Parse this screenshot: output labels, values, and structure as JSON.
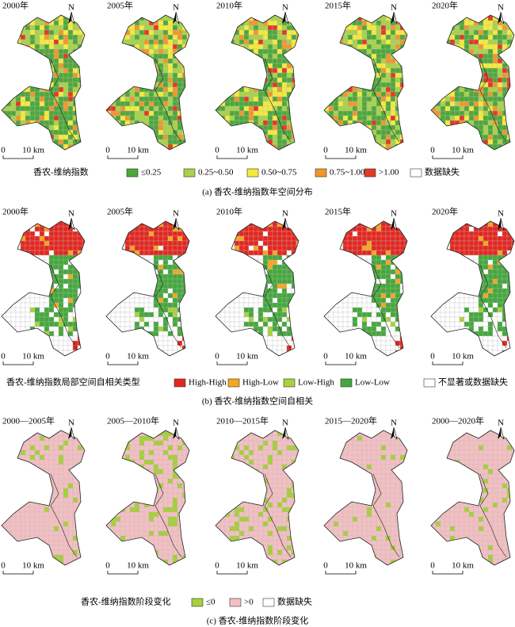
{
  "north": "N",
  "scale": {
    "zero": "0",
    "distance": "10 km"
  },
  "panels": [
    {
      "maps": [
        {
          "label": "2000年"
        },
        {
          "label": "2005年"
        },
        {
          "label": "2010年"
        },
        {
          "label": "2015年"
        },
        {
          "label": "2020年"
        }
      ],
      "legend": {
        "title": "香农-维纳指数",
        "items": [
          {
            "label": "≤0.25",
            "color": "#4da83a"
          },
          {
            "label": "0.25~0.50",
            "color": "#a8d24a"
          },
          {
            "label": "0.50~0.75",
            "color": "#f5ea3a"
          },
          {
            "label": "0.75~1.00",
            "color": "#f0962d"
          },
          {
            "label": ">1.00",
            "color": "#e23a25"
          },
          {
            "label": "数据缺失",
            "color": "#ffffff"
          }
        ]
      },
      "caption": "(a) 香农-维纳指数年空间分布"
    },
    {
      "maps": [
        {
          "label": "2000年"
        },
        {
          "label": "2005年"
        },
        {
          "label": "2010年"
        },
        {
          "label": "2015年"
        },
        {
          "label": "2020年"
        }
      ],
      "legend": {
        "title": "香农-维纳指数局部空间自相关类型",
        "items": [
          {
            "label": "High-High",
            "color": "#e5261f"
          },
          {
            "label": "High-Low",
            "color": "#f5a623"
          },
          {
            "label": "Low-High",
            "color": "#a8d23c"
          },
          {
            "label": "Low-Low",
            "color": "#44a83c"
          },
          {
            "label": "不显著或数据缺失",
            "color": "#ffffff"
          }
        ]
      },
      "caption": "(b) 香农-维纳指数空间自相关"
    },
    {
      "maps": [
        {
          "label": "2000—2005年"
        },
        {
          "label": "2005—2010年"
        },
        {
          "label": "2010—2015年"
        },
        {
          "label": "2015—2020年"
        },
        {
          "label": "2000—2020年"
        }
      ],
      "legend": {
        "title": "香农-维纳指数阶段变化",
        "items": [
          {
            "label": "≤0",
            "color": "#a6cf3a"
          },
          {
            "label": ">0",
            "color": "#f4bfc2"
          },
          {
            "label": "数据缺失",
            "color": "#ffffff"
          }
        ]
      },
      "caption": "(c) 香农-维纳指数阶段变化"
    }
  ]
}
